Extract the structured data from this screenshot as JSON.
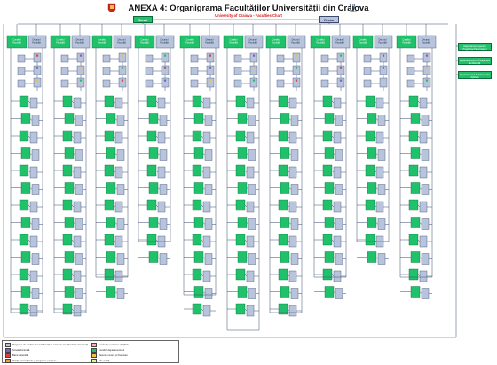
{
  "header": {
    "title": "ANEXA 4: Organigrama Facultăților Universității din Craiova",
    "subtitle": "University of Craiova - Faculties Chart"
  },
  "top": {
    "senat": "Senat",
    "rector": "Rector"
  },
  "colors": {
    "green": "#1fc26a",
    "blue_grey": "#b8c4dc",
    "line": "#3a4a6e",
    "red_text": "#d02020"
  },
  "columns": [
    {
      "council": "Consiliul Facultății",
      "dean": "Decanul Facultății",
      "levels": 14
    },
    {
      "council": "Consiliul Facultății",
      "dean": "Decanul Facultății",
      "levels": 14
    },
    {
      "council": "Consiliul Facultății",
      "dean": "Decanul Facultății",
      "levels": 12
    },
    {
      "council": "Consiliul Facultății",
      "dean": "Decanul Facultății",
      "levels": 10
    },
    {
      "council": "Consiliul Facultății",
      "dean": "Decanul Facultății",
      "levels": 13
    },
    {
      "council": "Consiliul Facultății",
      "dean": "Decanul Facultății",
      "levels": 15
    },
    {
      "council": "Consiliul Facultății",
      "dean": "Decanul Facultății",
      "levels": 14
    },
    {
      "council": "Consiliul Facultății",
      "dean": "Decanul Facultății",
      "levels": 12
    },
    {
      "council": "Consiliul Facultății",
      "dean": "Decanul Facultății",
      "levels": 10
    },
    {
      "council": "Consiliul Facultății",
      "dean": "Decanul Facultății",
      "levels": 12
    }
  ],
  "right_boxes": [
    "Departamentul pentru Pregătirea Personalului Didactic",
    "Departamentul de Învățământ la Distanță",
    "Departamentul de Matematici Aplicate"
  ],
  "legend": [
    {
      "label": "Programe de studii la nivel de licență și masterat, învățământ cu frecvență",
      "color": "#b8c4dc"
    },
    {
      "label": "Centre de cercetare științifică",
      "color": "#f4b0c0"
    },
    {
      "label": "Școala doctorală",
      "color": "#8060c0"
    },
    {
      "label": "Consiliul departamentului",
      "color": "#1fc26a"
    },
    {
      "label": "Baza materială",
      "color": "#e04040"
    },
    {
      "label": "Resurse umane și financiare",
      "color": "#f0c040"
    },
    {
      "label": "Relații internaționale și programe europene",
      "color": "#f0a030"
    },
    {
      "label": "Alte unități",
      "color": "#f0f090"
    }
  ]
}
